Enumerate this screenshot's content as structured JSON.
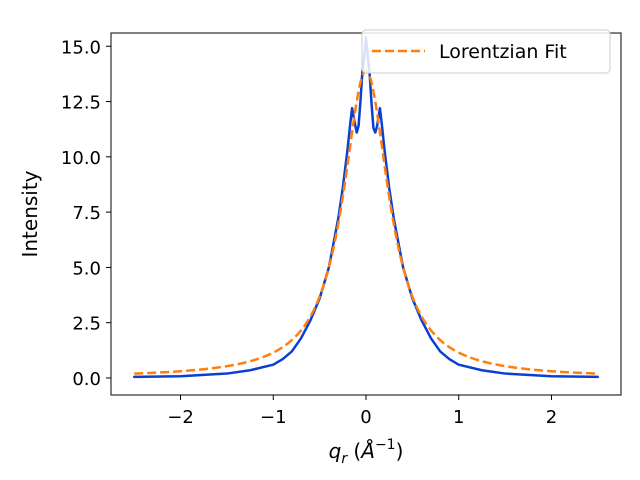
{
  "chart_data": {
    "type": "line",
    "xlabel_base": "q",
    "xlabel_sub": "r",
    "xlabel_unit_open": " (",
    "xlabel_unit": "Å",
    "xlabel_exp": "−1",
    "xlabel_unit_close": ")",
    "ylabel": "Intensity",
    "xlim": [
      -2.75,
      2.75
    ],
    "ylim": [
      -0.77,
      15.6
    ],
    "x_ticks": [
      -2,
      -1,
      0,
      1,
      2
    ],
    "x_tick_labels": [
      "−2",
      "−1",
      "0",
      "1",
      "2"
    ],
    "y_ticks": [
      0,
      2.5,
      5,
      7.5,
      10,
      12.5,
      15
    ],
    "y_tick_labels": [
      "0.0",
      "2.5",
      "5.0",
      "7.5",
      "10.0",
      "12.5",
      "15.0"
    ],
    "legend_position": "top-right",
    "grid": false,
    "series": [
      {
        "style": "solid",
        "color": "#0b3fd4",
        "x": [
          -2.5,
          -2.0,
          -1.5,
          -1.25,
          -1.0,
          -0.9,
          -0.8,
          -0.7,
          -0.6,
          -0.5,
          -0.4,
          -0.3,
          -0.25,
          -0.2,
          -0.17,
          -0.15,
          -0.12,
          -0.1,
          -0.08,
          -0.06,
          -0.04,
          -0.02,
          0.0,
          0.02,
          0.04,
          0.06,
          0.08,
          0.1,
          0.12,
          0.15,
          0.17,
          0.2,
          0.25,
          0.3,
          0.4,
          0.5,
          0.6,
          0.7,
          0.8,
          0.9,
          1.0,
          1.25,
          1.5,
          2.0,
          2.5
        ],
        "y": [
          0.05,
          0.08,
          0.2,
          0.35,
          0.6,
          0.85,
          1.2,
          1.8,
          2.6,
          3.6,
          5.0,
          7.2,
          8.6,
          10.3,
          11.5,
          12.2,
          11.5,
          11.1,
          11.4,
          12.5,
          13.8,
          14.5,
          15.4,
          14.5,
          13.7,
          12.4,
          11.3,
          11.1,
          11.4,
          12.2,
          11.5,
          10.3,
          8.6,
          7.2,
          5.0,
          3.6,
          2.6,
          1.8,
          1.2,
          0.85,
          0.6,
          0.35,
          0.2,
          0.08,
          0.05
        ]
      },
      {
        "name": "Lorentzian Fit",
        "style": "dashed",
        "color": "#ff7f0e",
        "lorentzian": {
          "amplitude": 13.9,
          "center": 0.0,
          "gamma": 0.3,
          "offset": 0.0
        },
        "x_range": [
          -2.5,
          2.5
        ]
      }
    ]
  }
}
